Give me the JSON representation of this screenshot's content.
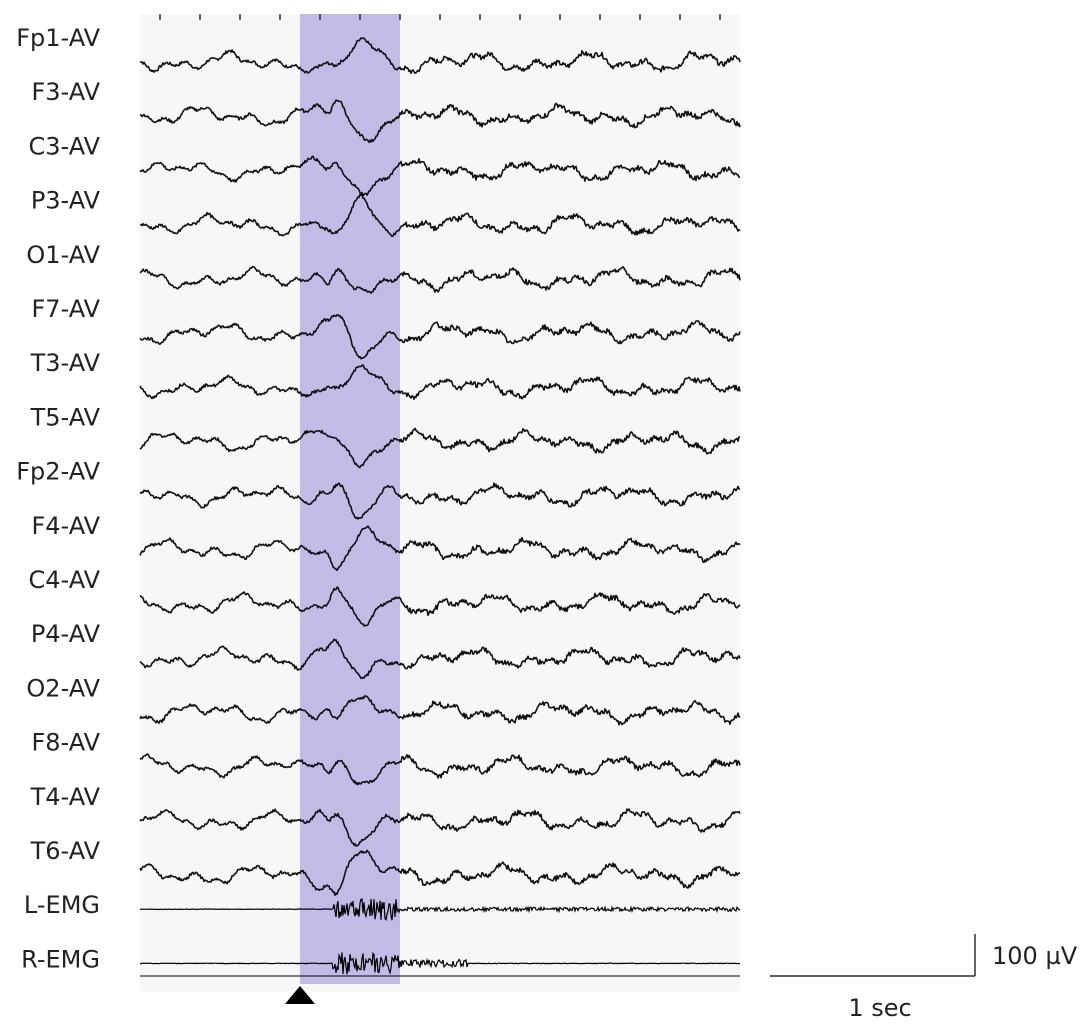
{
  "chart_data": {
    "type": "line",
    "channels": [
      "Fp1-AV",
      "F3-AV",
      "C3-AV",
      "P3-AV",
      "O1-AV",
      "F7-AV",
      "T3-AV",
      "T5-AV",
      "Fp2-AV",
      "F4-AV",
      "C4-AV",
      "P4-AV",
      "O2-AV",
      "F8-AV",
      "T4-AV",
      "T6-AV",
      "L-EMG",
      "R-EMG"
    ],
    "emg_channels": [
      "L-EMG",
      "R-EMG"
    ],
    "duration_sec": 7.5,
    "highlight": {
      "start_sec": 2.0,
      "end_sec": 3.25,
      "color": "#b9b5e3"
    },
    "event_marker_sec": 2.0,
    "top_ticks_sec": [
      0.25,
      0.75,
      1.25,
      1.75,
      2.25,
      2.75,
      3.25,
      3.75,
      4.25,
      4.75,
      5.25,
      5.75,
      6.25,
      6.75,
      7.25
    ],
    "scale_bar": {
      "amplitude_label": "100 µV",
      "time_label": "1 sec"
    },
    "colors": {
      "background": "#f7f7f5",
      "highlight": "#b9b5e3",
      "trace": "#111111",
      "marker": "#000000"
    }
  }
}
